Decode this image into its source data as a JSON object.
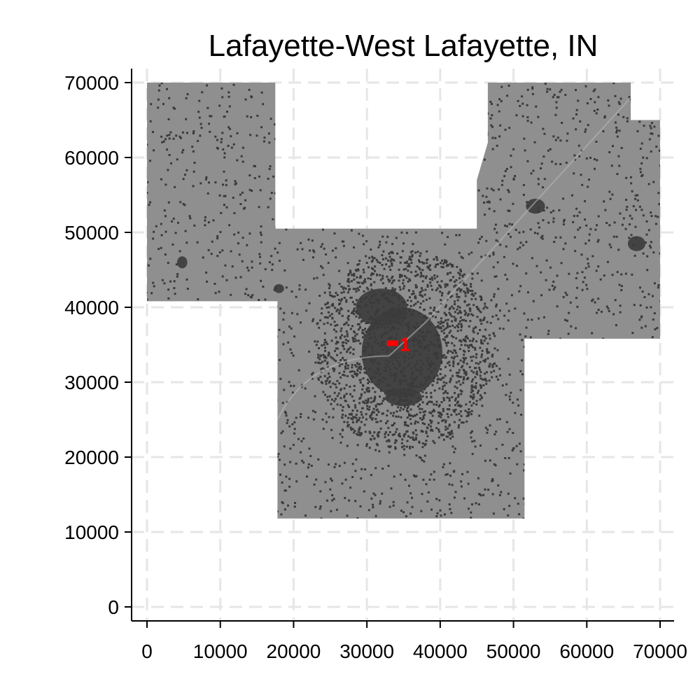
{
  "chart_data": {
    "type": "map",
    "title": "Lafayette-West Lafayette, IN",
    "xlim": [
      0,
      70000
    ],
    "ylim": [
      0,
      70000
    ],
    "x_ticks": [
      0,
      10000,
      20000,
      30000,
      40000,
      50000,
      60000,
      70000
    ],
    "y_ticks": [
      0,
      10000,
      20000,
      30000,
      40000,
      50000,
      60000,
      70000
    ],
    "x_tick_labels": [
      "0",
      "10000",
      "20000",
      "30000",
      "40000",
      "50000",
      "60000",
      "70000"
    ],
    "y_tick_labels": [
      "0",
      "10000",
      "20000",
      "30000",
      "40000",
      "50000",
      "60000",
      "70000"
    ],
    "grid": true,
    "grid_style": "dashed",
    "region_outline": [
      [
        0,
        70000
      ],
      [
        17500,
        70000
      ],
      [
        17500,
        50500
      ],
      [
        45000,
        50500
      ],
      [
        45000,
        57000
      ],
      [
        46500,
        62000
      ],
      [
        46500,
        70000
      ],
      [
        66000,
        70000
      ],
      [
        66000,
        65000
      ],
      [
        70000,
        65000
      ],
      [
        70000,
        35800
      ],
      [
        51500,
        35800
      ],
      [
        51500,
        11800
      ],
      [
        17800,
        11800
      ],
      [
        17800,
        40800
      ],
      [
        0,
        40800
      ]
    ],
    "dense_areas": [
      {
        "x": 34800,
        "y": 34000,
        "rx": 5500,
        "ry": 6000
      },
      {
        "x": 32000,
        "y": 40000,
        "rx": 3500,
        "ry": 2500
      },
      {
        "x": 53000,
        "y": 53500,
        "rx": 1300,
        "ry": 1000
      },
      {
        "x": 66800,
        "y": 48500,
        "rx": 1200,
        "ry": 1000
      },
      {
        "x": 4800,
        "y": 46000,
        "rx": 700,
        "ry": 800
      },
      {
        "x": 18000,
        "y": 42500,
        "rx": 700,
        "ry": 600
      },
      {
        "x": 35000,
        "y": 28000,
        "rx": 2500,
        "ry": 1200
      }
    ],
    "clusters": [
      {
        "id": "1",
        "label": "1",
        "x": 33500,
        "y": 35200
      }
    ],
    "colors": {
      "region_fill": "#8f8f8f",
      "dense_fill": "#3d3d3d",
      "scatter": "#3a3a3a",
      "cluster": "#ff0000",
      "grid": "#e6e6e6",
      "axis": "#000000"
    }
  }
}
